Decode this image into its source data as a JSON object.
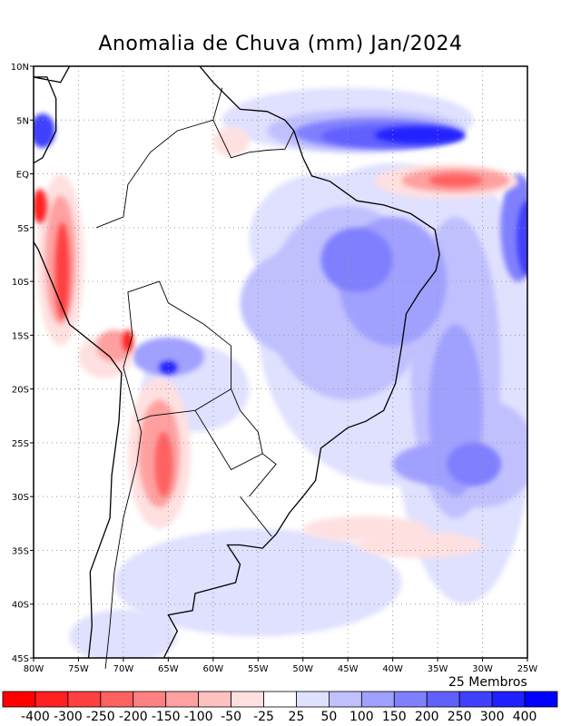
{
  "title": "Anomalia de Chuva (mm) Jan/2024",
  "members_label": "25 Membros",
  "lat_labels": [
    "10N",
    "5N",
    "EQ",
    "5S",
    "10S",
    "15S",
    "20S",
    "25S",
    "30S",
    "35S",
    "40S",
    "45S"
  ],
  "lon_labels": [
    "80W",
    "75W",
    "70W",
    "65W",
    "60W",
    "55W",
    "50W",
    "45W",
    "40W",
    "35W",
    "30W",
    "25W"
  ],
  "colorbar": {
    "colors": [
      "#ff0000",
      "#ff2020",
      "#ff4040",
      "#ff6060",
      "#ff8080",
      "#ffa0a0",
      "#ffc0c0",
      "#ffe0e0",
      "#ffffff",
      "#e0e0ff",
      "#c0c0ff",
      "#a0a0ff",
      "#8080ff",
      "#6060ff",
      "#4040ff",
      "#2020ff",
      "#0000ff"
    ],
    "labels": [
      "-400",
      "-300",
      "-250",
      "-200",
      "-150",
      "-100",
      "-50",
      "-25",
      "25",
      "50",
      "100",
      "150",
      "200",
      "250",
      "300",
      "400"
    ]
  },
  "map_extent": {
    "lon": [
      -80,
      -25
    ],
    "lat": [
      -45,
      10
    ]
  }
}
